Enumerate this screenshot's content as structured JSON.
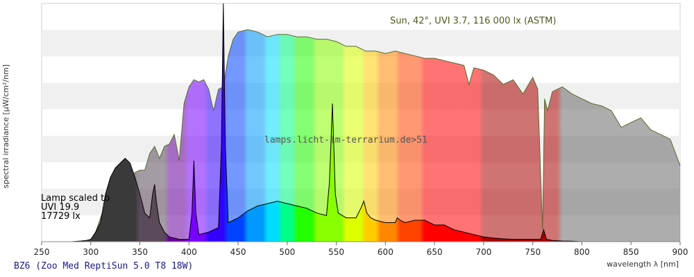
{
  "chart_data": {
    "type": "area",
    "xlabel": "wavelength λ [nm]",
    "ylabel": "spectral irradiance [µW/cm²/nm]",
    "xlim": [
      250,
      900
    ],
    "ylim": [
      0,
      100
    ],
    "x_ticks": [
      250,
      300,
      350,
      400,
      450,
      500,
      550,
      600,
      650,
      700,
      750,
      800,
      850,
      900
    ],
    "grid": "alternating horizontal bands",
    "lamp_label_lines": [
      "Lamp scaled to",
      "UVI 19.9",
      "17729 lx"
    ],
    "sun_label": "Sun, 42°, UVI 3.7, 116 000 lx (ASTM)",
    "watermark": "lamps.licht-im-terrarium.de>51",
    "series": [
      {
        "name": "Sun, 42°, UVI 3.7, 116 000 lx (ASTM)",
        "color": "#556b2f",
        "x": [
          290,
          295,
          300,
          305,
          310,
          315,
          320,
          325,
          330,
          335,
          340,
          345,
          350,
          355,
          360,
          365,
          370,
          375,
          380,
          385,
          390,
          395,
          400,
          405,
          410,
          415,
          420,
          425,
          430,
          435,
          440,
          445,
          450,
          460,
          470,
          480,
          490,
          500,
          510,
          520,
          530,
          540,
          550,
          560,
          570,
          580,
          590,
          600,
          610,
          620,
          630,
          640,
          650,
          660,
          670,
          680,
          685,
          690,
          700,
          710,
          720,
          730,
          740,
          750,
          755,
          760,
          762,
          765,
          770,
          780,
          790,
          800,
          810,
          820,
          830,
          840,
          850,
          860,
          870,
          880,
          890,
          900
        ],
        "y": [
          0,
          0.2,
          1,
          4,
          10,
          16,
          20,
          24,
          26,
          29,
          27,
          29,
          30,
          30,
          37,
          40,
          35,
          40,
          41,
          45,
          34,
          58,
          65,
          68,
          67,
          68,
          64,
          55,
          64,
          65,
          78,
          85,
          88,
          89,
          88,
          86,
          87,
          87,
          86,
          86,
          85,
          85,
          84,
          82,
          82,
          80,
          80,
          79,
          80,
          79,
          78,
          77,
          77,
          76,
          75,
          74,
          66,
          73,
          72,
          70,
          66,
          68,
          62,
          69,
          64,
          5,
          60,
          55,
          63,
          65,
          62,
          60,
          58,
          57,
          55,
          48,
          50,
          52,
          47,
          45,
          43,
          32
        ]
      },
      {
        "name": "BZ6 (Zoo Med ReptiSun 5.0 T8 18W)",
        "color": "#000000",
        "x": [
          250,
          280,
          290,
          295,
          300,
          305,
          310,
          315,
          320,
          325,
          330,
          335,
          340,
          345,
          350,
          355,
          360,
          363,
          365,
          367,
          370,
          375,
          380,
          390,
          400,
          403,
          405,
          407,
          410,
          420,
          430,
          433,
          435,
          437,
          440,
          450,
          460,
          470,
          480,
          490,
          500,
          510,
          520,
          530,
          540,
          543,
          546,
          549,
          552,
          560,
          570,
          575,
          578,
          581,
          585,
          590,
          600,
          610,
          612,
          615,
          620,
          630,
          640,
          650,
          660,
          665,
          670,
          680,
          690,
          700,
          710,
          720,
          730,
          740,
          750,
          758,
          761,
          764,
          770,
          780,
          790,
          800,
          900
        ],
        "y": [
          0,
          0,
          0.3,
          0.5,
          1,
          4,
          8,
          20,
          27,
          31,
          33,
          35,
          33,
          27,
          20,
          12,
          10,
          20,
          24,
          16,
          8,
          4,
          2,
          1,
          1,
          12,
          34,
          12,
          3,
          4,
          6,
          40,
          100,
          40,
          8,
          10,
          13,
          15,
          16,
          17,
          16,
          15,
          14,
          12,
          11,
          25,
          58,
          20,
          12,
          10,
          10,
          14,
          17,
          12,
          10,
          9,
          8,
          8,
          10,
          9,
          8,
          9,
          9,
          7,
          7,
          6,
          5,
          4,
          3,
          2,
          1.5,
          1.2,
          1,
          1,
          1,
          1,
          5,
          1,
          0.5,
          0.3,
          0.2,
          0,
          0
        ]
      }
    ]
  },
  "footer": {
    "title": "BZ6 (Zoo Med ReptiSun 5.0 T8 18W)"
  }
}
